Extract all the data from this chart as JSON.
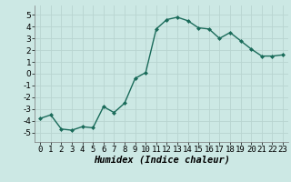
{
  "x": [
    0,
    1,
    2,
    3,
    4,
    5,
    6,
    7,
    8,
    9,
    10,
    11,
    12,
    13,
    14,
    15,
    16,
    17,
    18,
    19,
    20,
    21,
    22,
    23
  ],
  "y": [
    -3.8,
    -3.5,
    -4.7,
    -4.8,
    -4.5,
    -4.6,
    -2.8,
    -3.3,
    -2.5,
    -0.4,
    0.1,
    3.8,
    4.6,
    4.8,
    4.5,
    3.9,
    3.8,
    3.0,
    3.5,
    2.8,
    2.1,
    1.5,
    1.5,
    1.6
  ],
  "line_color": "#1a6b5a",
  "marker": "D",
  "marker_size": 2.0,
  "bg_color": "#cce8e4",
  "grid_color": "#b8d4d0",
  "xlabel": "Humidex (Indice chaleur)",
  "xlim": [
    -0.5,
    23.5
  ],
  "ylim": [
    -5.8,
    5.8
  ],
  "yticks": [
    -5,
    -4,
    -3,
    -2,
    -1,
    0,
    1,
    2,
    3,
    4,
    5
  ],
  "xticks": [
    0,
    1,
    2,
    3,
    4,
    5,
    6,
    7,
    8,
    9,
    10,
    11,
    12,
    13,
    14,
    15,
    16,
    17,
    18,
    19,
    20,
    21,
    22,
    23
  ],
  "tick_fontsize": 6.5,
  "xlabel_fontsize": 7.5,
  "linewidth": 1.0
}
